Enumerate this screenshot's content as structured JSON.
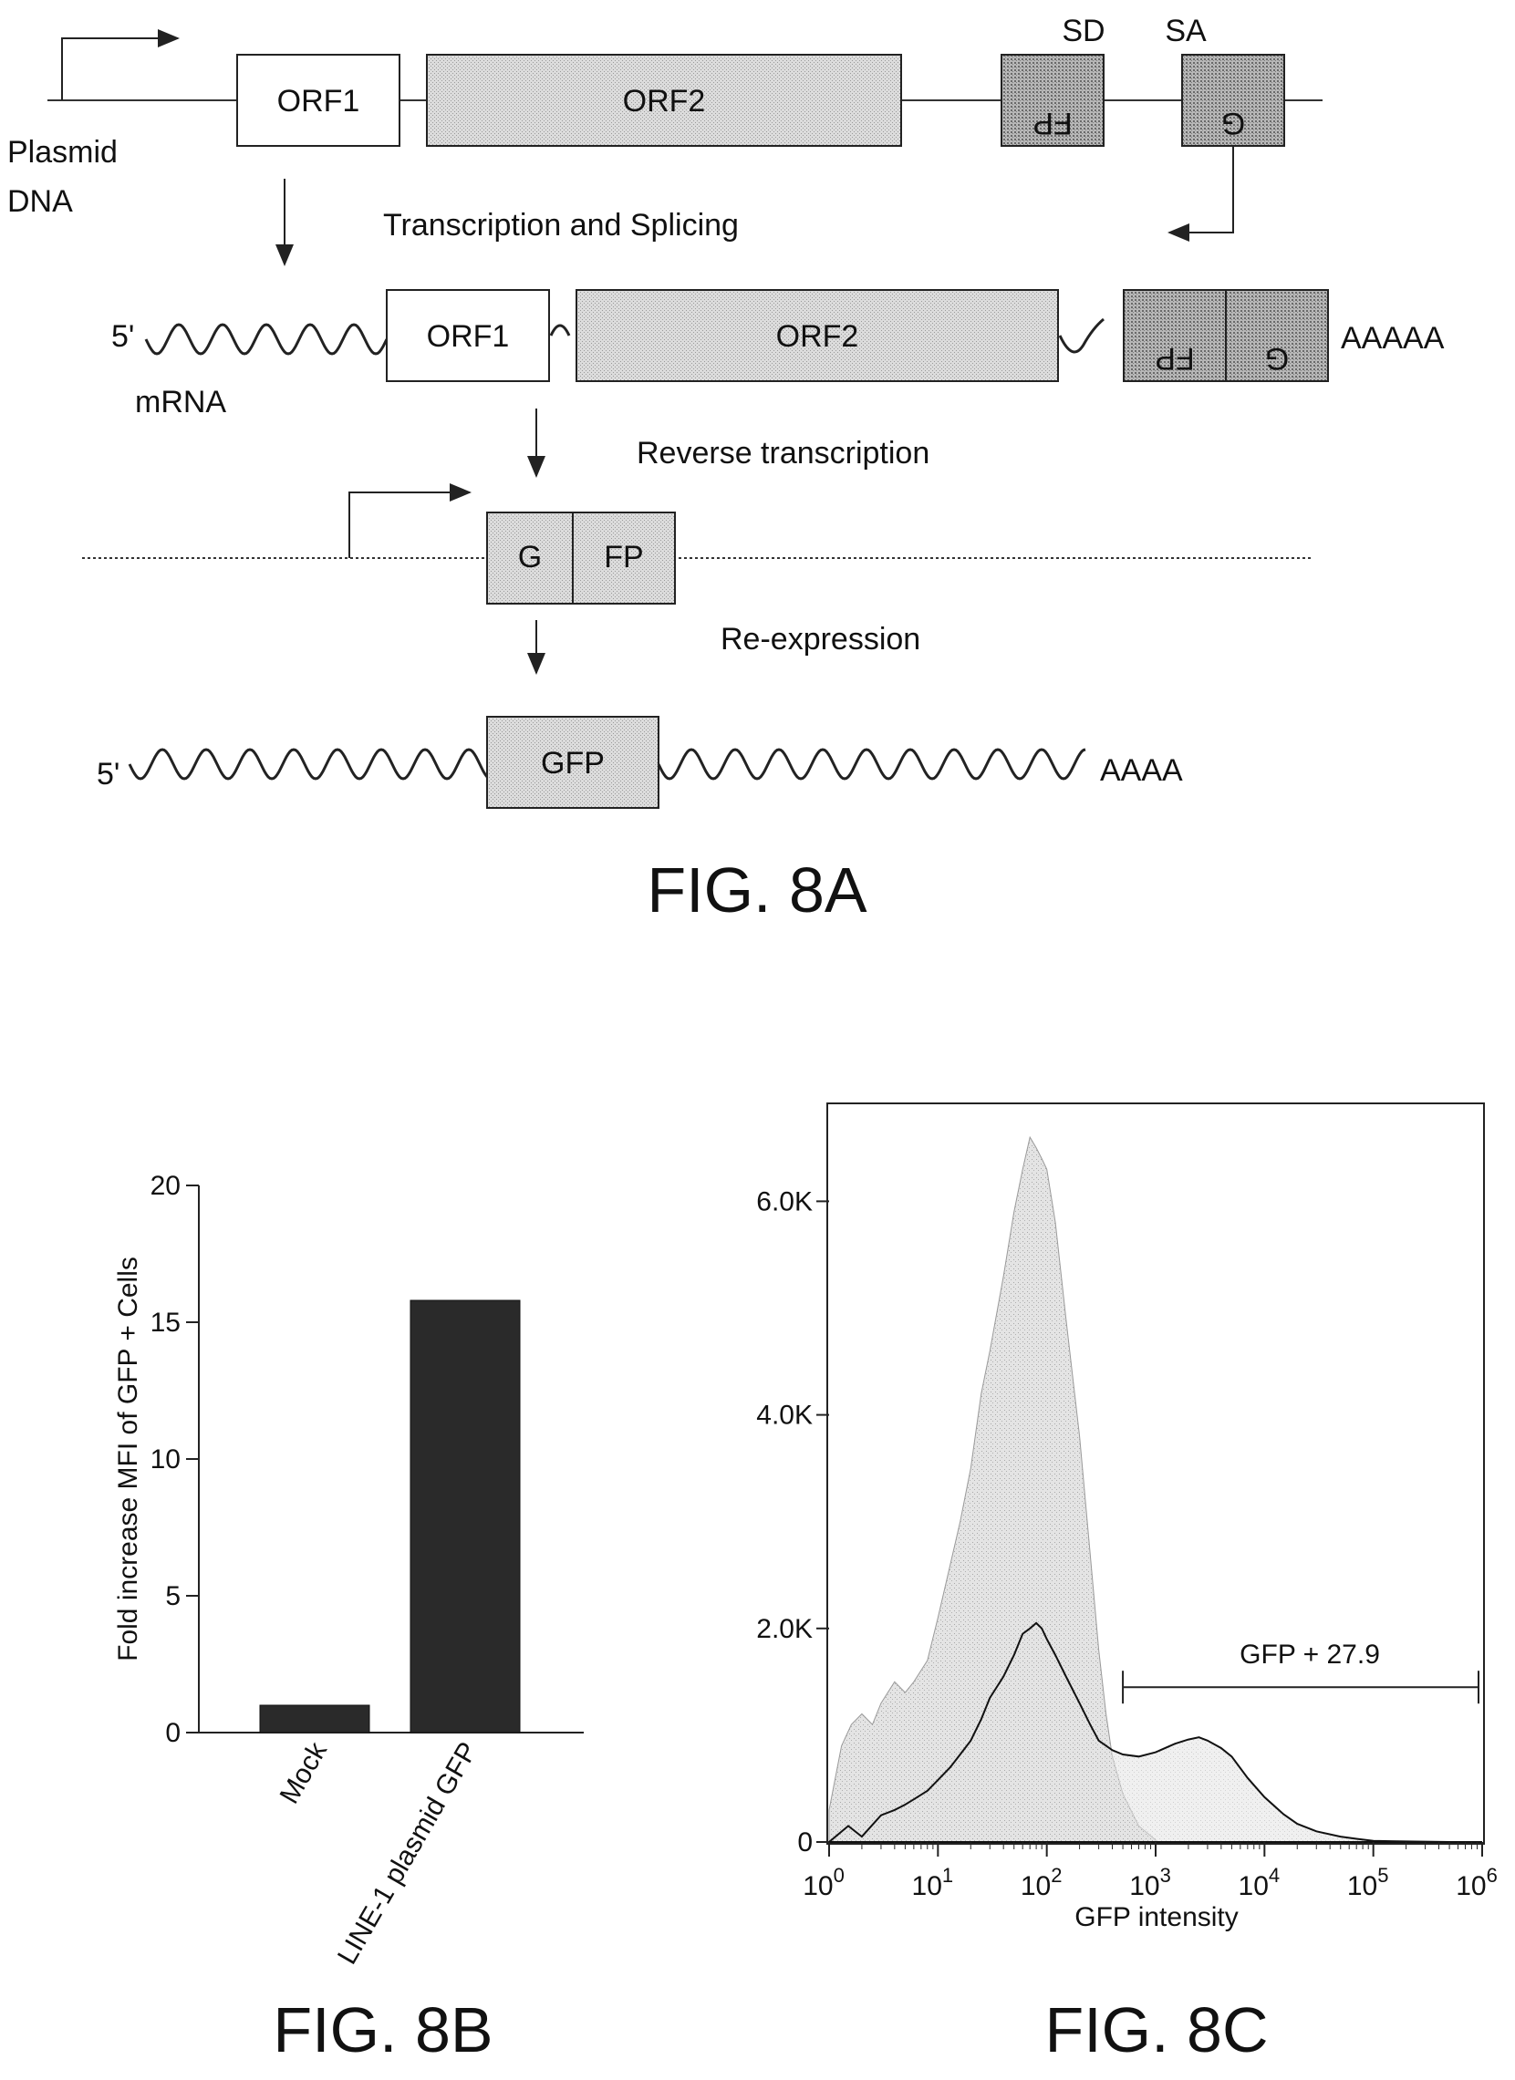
{
  "fig8a": {
    "caption": "FIG. 8A",
    "plasmid_label_1": "Plasmid",
    "plasmid_label_2": "DNA",
    "sd_label": "SD",
    "sa_label": "SA",
    "orf1": "ORF1",
    "orf2": "ORF2",
    "fp_rev": "FP",
    "g_rev": "G",
    "step1": "Transcription and Splicing",
    "mrna_5prime": "5'",
    "mrna_label": "mRNA",
    "mrna_orf1": "ORF1",
    "mrna_orf2": "ORF2",
    "mrna_fp_rev": "FP",
    "mrna_g_rev": "G",
    "polyA_1": "AAAAA",
    "step2": "Reverse transcription",
    "g": "G",
    "fp": "FP",
    "step3": "Re-expression",
    "final_5prime": "5'",
    "gfp": "GFP",
    "polyA_2": "AAAA"
  },
  "fig8b": {
    "caption": "FIG. 8B",
    "chart_data": {
      "type": "bar",
      "categories": [
        "Mock",
        "LINE-1 plasmid GFP"
      ],
      "values": [
        1,
        15.8
      ],
      "ylabel": "Fold increase MFI of GFP + Cells",
      "ylim": [
        0,
        20
      ],
      "yticks": [
        0,
        5,
        10,
        15,
        20
      ],
      "colors": [
        "#2a2a2a",
        "#2a2a2a"
      ]
    }
  },
  "fig8c": {
    "caption": "FIG. 8C",
    "chart_data": {
      "type": "area",
      "xlabel": "GFP intensity",
      "x_scale": "log",
      "xlim": [
        1,
        1000000
      ],
      "xticks": [
        "10^0",
        "10^1",
        "10^2",
        "10^3",
        "10^4",
        "10^5",
        "10^6"
      ],
      "ylim": [
        0,
        6900
      ],
      "yticks": [
        {
          "value": 0,
          "label": "0"
        },
        {
          "value": 2000,
          "label": "2.0K"
        },
        {
          "value": 4000,
          "label": "4.0K"
        },
        {
          "value": 6000,
          "label": "6.0K"
        }
      ],
      "series": [
        {
          "style": "shaded",
          "color": "#d6d6d6",
          "x": [
            1,
            1.3,
            1.6,
            2,
            2.5,
            3,
            4,
            5,
            6,
            8,
            10,
            13,
            16,
            20,
            25,
            30,
            40,
            50,
            60,
            70,
            80,
            90,
            100,
            120,
            150,
            200,
            250,
            300,
            350,
            400,
            500,
            700,
            1000
          ],
          "y": [
            300,
            900,
            1100,
            1200,
            1100,
            1300,
            1500,
            1400,
            1500,
            1700,
            2100,
            2600,
            3000,
            3500,
            4200,
            4600,
            5300,
            5900,
            6300,
            6600,
            6500,
            6400,
            6300,
            5800,
            4900,
            3800,
            2700,
            1800,
            1200,
            800,
            450,
            150,
            20
          ]
        },
        {
          "style": "line",
          "color": "#111111",
          "x": [
            1,
            1.5,
            2,
            3,
            4,
            5,
            6,
            8,
            10,
            13,
            16,
            20,
            25,
            30,
            40,
            50,
            60,
            70,
            80,
            90,
            100,
            120,
            150,
            200,
            250,
            300,
            400,
            500,
            700,
            1000,
            1500,
            2000,
            2500,
            3000,
            4000,
            5000,
            7000,
            10000,
            15000,
            20000,
            30000,
            50000,
            70000,
            100000,
            200000,
            500000,
            1000000
          ],
          "y": [
            0,
            150,
            50,
            250,
            300,
            350,
            400,
            480,
            580,
            700,
            820,
            950,
            1150,
            1350,
            1550,
            1750,
            1950,
            2000,
            2050,
            2000,
            1900,
            1750,
            1550,
            1300,
            1100,
            950,
            860,
            820,
            800,
            840,
            920,
            960,
            980,
            950,
            880,
            800,
            600,
            420,
            260,
            170,
            100,
            50,
            30,
            10,
            5,
            0,
            0
          ]
        }
      ],
      "annotation": {
        "text": "GFP + 27.9",
        "x_start": 500,
        "x_end": 1000000,
        "y": 1450
      }
    }
  }
}
